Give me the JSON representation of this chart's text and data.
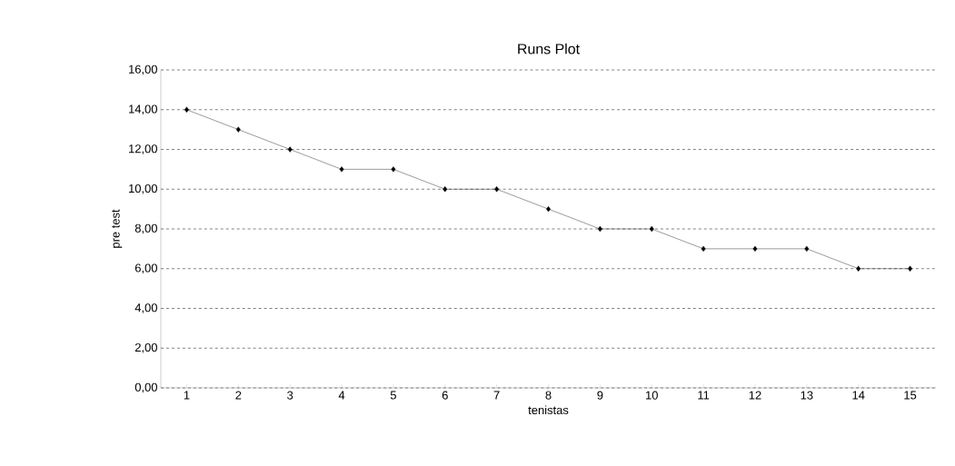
{
  "chart_data": {
    "type": "line",
    "title": "Runs Plot",
    "xlabel": "tenistas",
    "ylabel": "pre test",
    "categories": [
      "1",
      "2",
      "3",
      "4",
      "5",
      "6",
      "7",
      "8",
      "9",
      "10",
      "11",
      "12",
      "13",
      "14",
      "15"
    ],
    "values": [
      14,
      13,
      12,
      11,
      11,
      10,
      10,
      9,
      8,
      8,
      7,
      7,
      7,
      6,
      6
    ],
    "color": "#000000",
    "ylim": [
      0,
      16
    ],
    "yticks": [
      {
        "value": 0,
        "label": "0,00"
      },
      {
        "value": 2,
        "label": "2,00"
      },
      {
        "value": 4,
        "label": "4,00"
      },
      {
        "value": 6,
        "label": "6,00"
      },
      {
        "value": 8,
        "label": "8,00"
      },
      {
        "value": 10,
        "label": "10,00"
      },
      {
        "value": 12,
        "label": "12,00"
      },
      {
        "value": 14,
        "label": "14,00"
      },
      {
        "value": 16,
        "label": "16,00"
      }
    ],
    "grid": "y",
    "marker": "diamond",
    "line_style": "solid"
  }
}
